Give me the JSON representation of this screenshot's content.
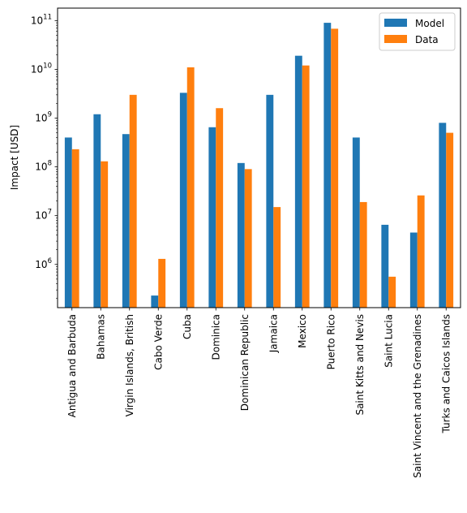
{
  "chart_data": {
    "type": "bar",
    "ylabel": "Impact [USD]",
    "yscale": "log",
    "ylim": [
      130000,
      180000000000
    ],
    "categories": [
      "Antigua and Barbuda",
      "Bahamas",
      "Virgin Islands, British",
      "Cabo Verde",
      "Cuba",
      "Dominica",
      "Dominican Republic",
      "Jamaica",
      "Mexico",
      "Puerto Rico",
      "Saint Kitts and Nevis",
      "Saint Lucia",
      "Saint Vincent and the Grenadines",
      "Turks and Caicos Islands"
    ],
    "series": [
      {
        "name": "Model",
        "color": "#1f77b4",
        "values": [
          400000000,
          1200000000,
          470000000,
          230000,
          3300000000,
          650000000,
          120000000,
          3000000000,
          19000000000,
          90000000000,
          400000000,
          6500000,
          4500000,
          800000000
        ]
      },
      {
        "name": "Data",
        "color": "#ff7f0e",
        "values": [
          230000000,
          130000000,
          3000000000,
          1300000,
          11000000000,
          1600000000,
          90000000,
          15000000,
          12000000000,
          68000000000,
          19000000,
          560000,
          26000000,
          500000000
        ]
      }
    ],
    "yticks": [
      {
        "value": 1000000,
        "base": "10",
        "exp": "6"
      },
      {
        "value": 10000000,
        "base": "10",
        "exp": "7"
      },
      {
        "value": 100000000,
        "base": "10",
        "exp": "8"
      },
      {
        "value": 1000000000,
        "base": "10",
        "exp": "9"
      },
      {
        "value": 10000000000,
        "base": "10",
        "exp": "10"
      },
      {
        "value": 100000000000,
        "base": "10",
        "exp": "11"
      }
    ],
    "legend": {
      "position": "top-right"
    },
    "grid": false
  }
}
